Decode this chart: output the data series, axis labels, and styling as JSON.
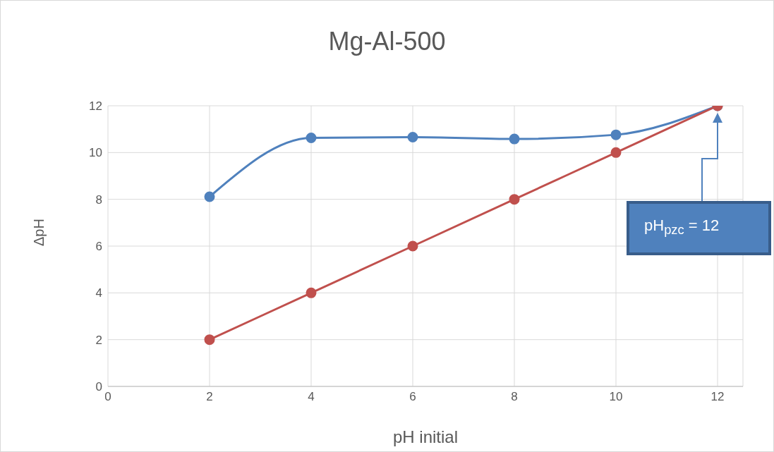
{
  "chart_data": {
    "type": "line",
    "title": "Mg-Al-500",
    "xlabel": "pH initial",
    "ylabel": "ΔpH",
    "x": [
      2,
      4,
      6,
      8,
      10,
      12
    ],
    "series": [
      {
        "color": "#4f81bd",
        "values": [
          8.11,
          10.63,
          10.66,
          10.58,
          10.76,
          12
        ]
      },
      {
        "color": "#c0504d",
        "values": [
          2,
          4,
          6,
          8,
          10,
          12
        ]
      }
    ],
    "xlim": [
      0,
      12.5
    ],
    "xticks": [
      0,
      2,
      4,
      6,
      8,
      10,
      12
    ],
    "ylim": [
      0,
      12
    ],
    "yticks": [
      0,
      2,
      4,
      6,
      8,
      10,
      12
    ],
    "grid": true,
    "legend": false,
    "marker": "circle",
    "line_style": "solid",
    "annotations": [
      "pH$_{pzc}$ = 12"
    ]
  }
}
